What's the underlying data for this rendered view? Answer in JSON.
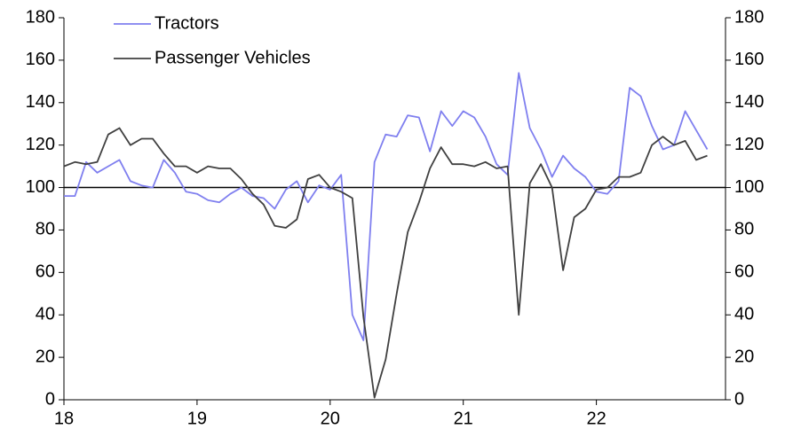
{
  "chart_data": {
    "type": "line",
    "x": [
      18,
      18.083,
      18.167,
      18.25,
      18.333,
      18.417,
      18.5,
      18.583,
      18.667,
      18.75,
      18.833,
      18.917,
      19,
      19.083,
      19.167,
      19.25,
      19.333,
      19.417,
      19.5,
      19.583,
      19.667,
      19.75,
      19.833,
      19.917,
      20,
      20.083,
      20.167,
      20.25,
      20.333,
      20.417,
      20.5,
      20.583,
      20.667,
      20.75,
      20.833,
      20.917,
      21,
      21.083,
      21.167,
      21.25,
      21.333,
      21.417,
      21.5,
      21.583,
      21.667,
      21.75,
      21.833,
      21.917,
      22,
      22.083,
      22.167,
      22.25,
      22.333,
      22.417,
      22.5,
      22.583,
      22.667,
      22.75,
      22.833
    ],
    "series": [
      {
        "name": "Tractors",
        "color": "#7f7fef",
        "values": [
          96,
          96,
          112,
          107,
          110,
          113,
          103,
          101,
          100,
          113,
          107,
          98,
          97,
          94,
          93,
          97,
          100,
          96,
          95,
          90,
          99,
          103,
          93,
          101,
          99,
          106,
          40,
          28,
          112,
          125,
          124,
          134,
          133,
          117,
          136,
          129,
          136,
          133,
          124,
          111,
          106,
          154,
          128,
          118,
          105,
          115,
          109,
          105,
          98,
          97,
          103,
          147,
          143,
          129,
          118,
          120,
          136,
          127,
          118
        ]
      },
      {
        "name": "Passenger Vehicles",
        "color": "#404040",
        "values": [
          110,
          112,
          111,
          112,
          125,
          128,
          120,
          123,
          123,
          116,
          110,
          110,
          107,
          110,
          109,
          109,
          104,
          97,
          92,
          82,
          81,
          85,
          104,
          106,
          100,
          98,
          95,
          39,
          1,
          19,
          50,
          79,
          93,
          109,
          119,
          111,
          111,
          110,
          112,
          109,
          110,
          40,
          102,
          111,
          100,
          61,
          86,
          90,
          99,
          100,
          105,
          105,
          107,
          120,
          124,
          120,
          122,
          113,
          115
        ]
      }
    ],
    "xlim": [
      18,
      22.97
    ],
    "xticks": [
      18,
      19,
      20,
      21,
      22
    ],
    "ylim": [
      0,
      180
    ],
    "yticks": [
      0,
      20,
      40,
      60,
      80,
      100,
      120,
      140,
      160,
      180
    ],
    "y2lim": [
      0,
      180
    ],
    "y2ticks": [
      0,
      20,
      40,
      60,
      80,
      100,
      120,
      140,
      160,
      180
    ],
    "hline": 100,
    "legend": "top-left",
    "grid": false
  }
}
